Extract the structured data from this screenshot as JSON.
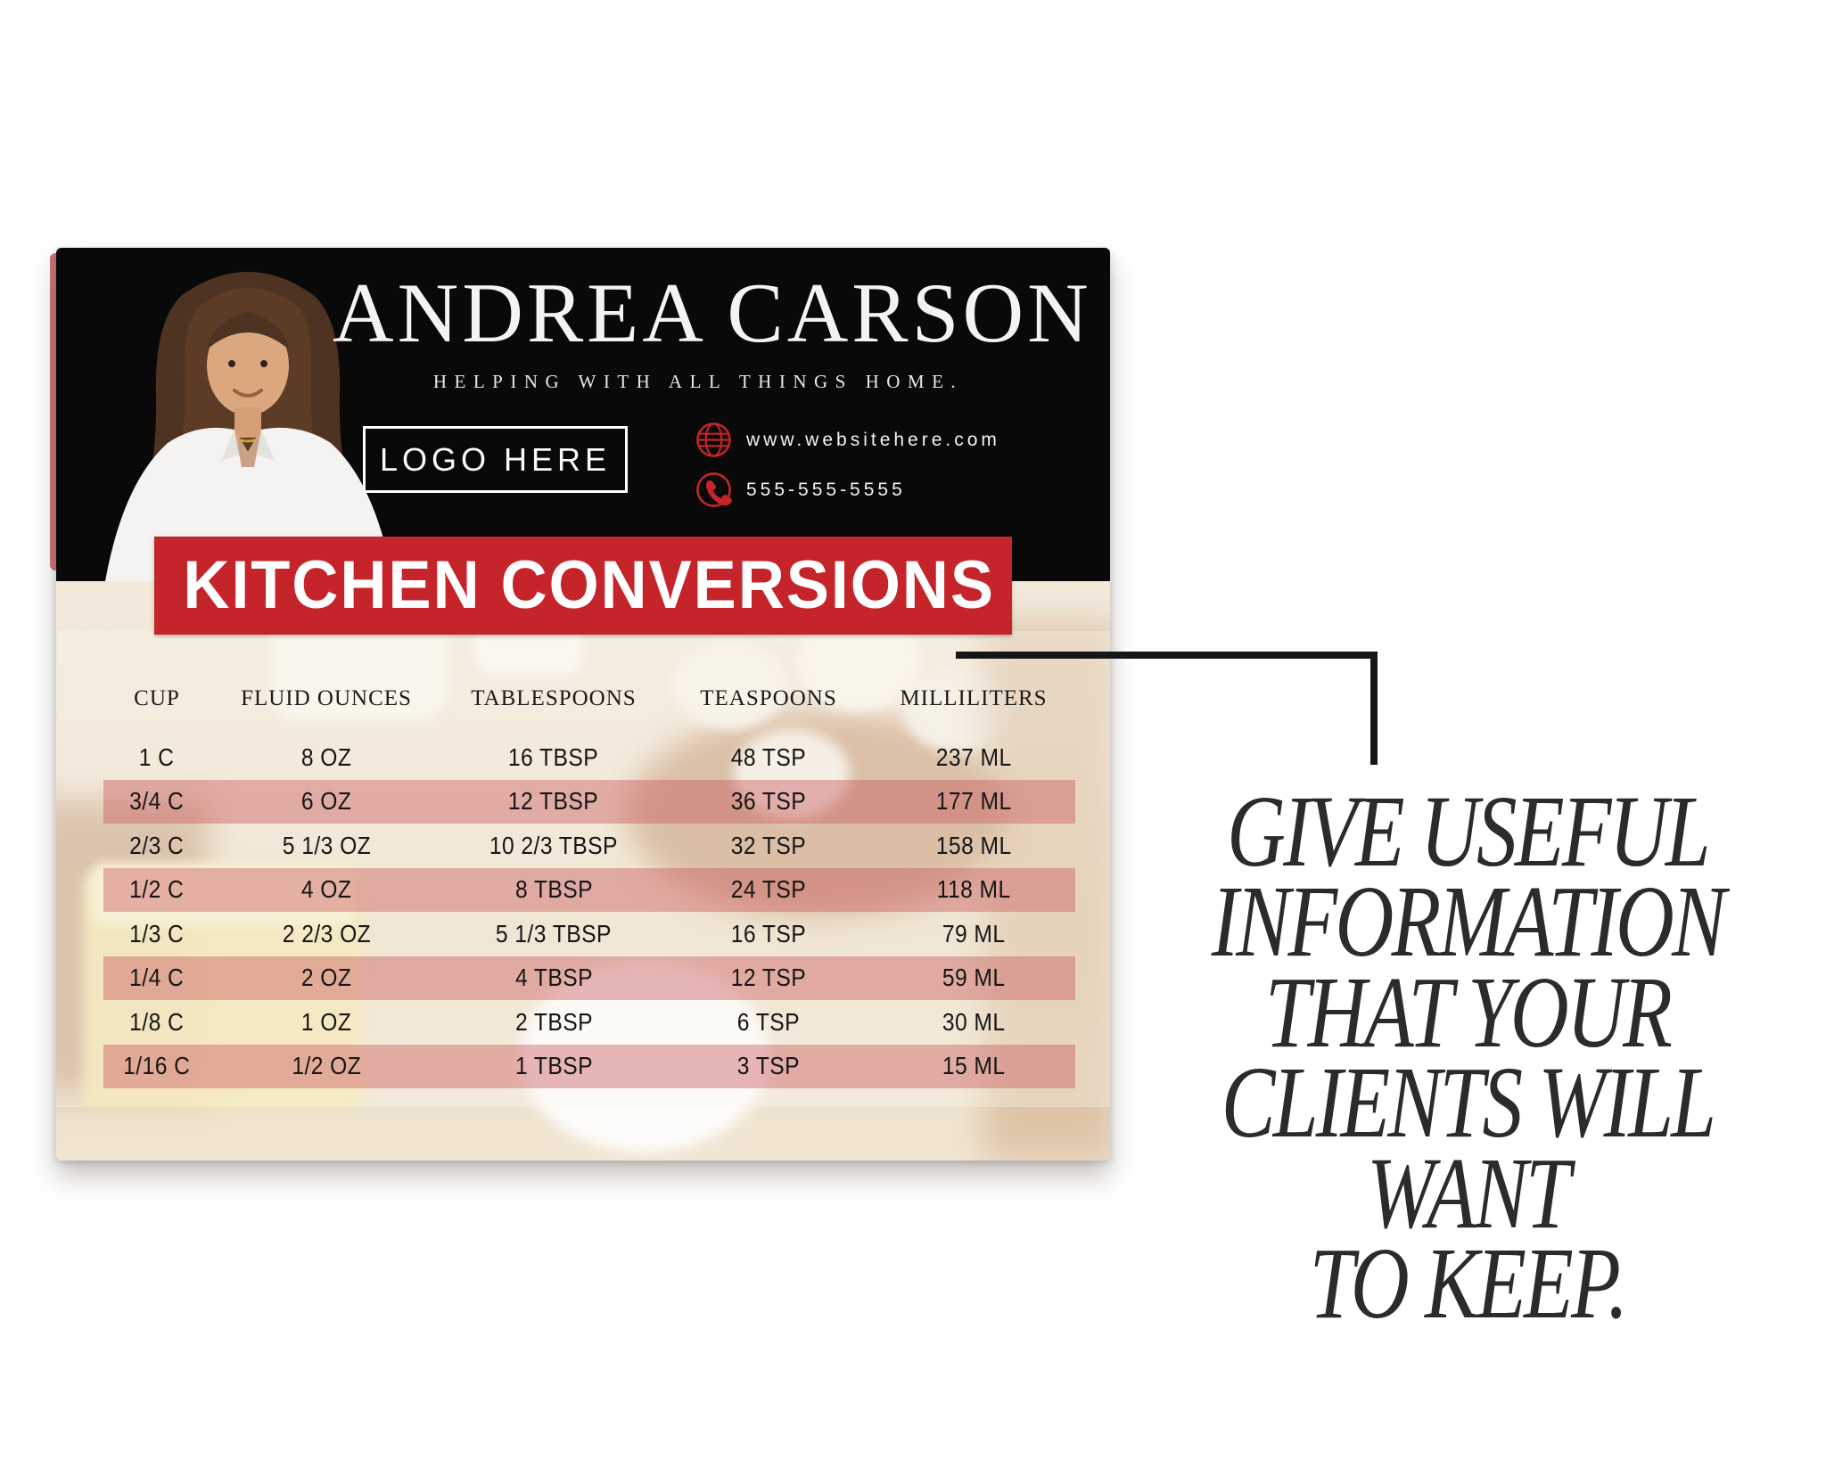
{
  "card": {
    "header": {
      "name": "ANDREA CARSON",
      "tagline": "HELPING WITH ALL THINGS HOME.",
      "logo_placeholder": "LOGO HERE",
      "website": "www.websitehere.com",
      "phone": "555-555-5555",
      "website_icon": "globe-icon",
      "phone_icon": "phone-icon",
      "portrait": "woman-portrait-photo"
    },
    "banner_title": "KITCHEN CONVERSIONS",
    "table": {
      "columns": [
        "CUP",
        "FLUID OUNCES",
        "TABLESPOONS",
        "TEASPOONS",
        "MILLILITERS"
      ],
      "rows": [
        [
          "1 C",
          "8 OZ",
          "16 TBSP",
          "48 TSP",
          "237 ML"
        ],
        [
          "3/4 C",
          "6 OZ",
          "12 TBSP",
          "36 TSP",
          "177 ML"
        ],
        [
          "2/3 C",
          "5 1/3 OZ",
          "10 2/3 TBSP",
          "32 TSP",
          "158 ML"
        ],
        [
          "1/2 C",
          "4 OZ",
          "8 TBSP",
          "24 TSP",
          "118 ML"
        ],
        [
          "1/3 C",
          "2 2/3 OZ",
          "5 1/3 TBSP",
          "16 TSP",
          "79 ML"
        ],
        [
          "1/4 C",
          "2 OZ",
          "4 TBSP",
          "12 TSP",
          "59 ML"
        ],
        [
          "1/8 C",
          "1 OZ",
          "2 TBSP",
          "6 TSP",
          "30 ML"
        ],
        [
          "1/16 C",
          "1/2 OZ",
          "1 TBSP",
          "3 TSP",
          "15 ML"
        ]
      ],
      "striped_row_indices": [
        1,
        3,
        5,
        7
      ]
    }
  },
  "callout": {
    "lines": [
      "GIVE USEFUL",
      "INFORMATION",
      "THAT YOUR",
      "CLIENTS WILL",
      "WANT",
      "TO KEEP."
    ]
  },
  "colors": {
    "accent_red": "#c5242b",
    "stripe_pink": "#e0999c",
    "callout_text": "#2b2a2d",
    "header_black": "#0a0909"
  }
}
